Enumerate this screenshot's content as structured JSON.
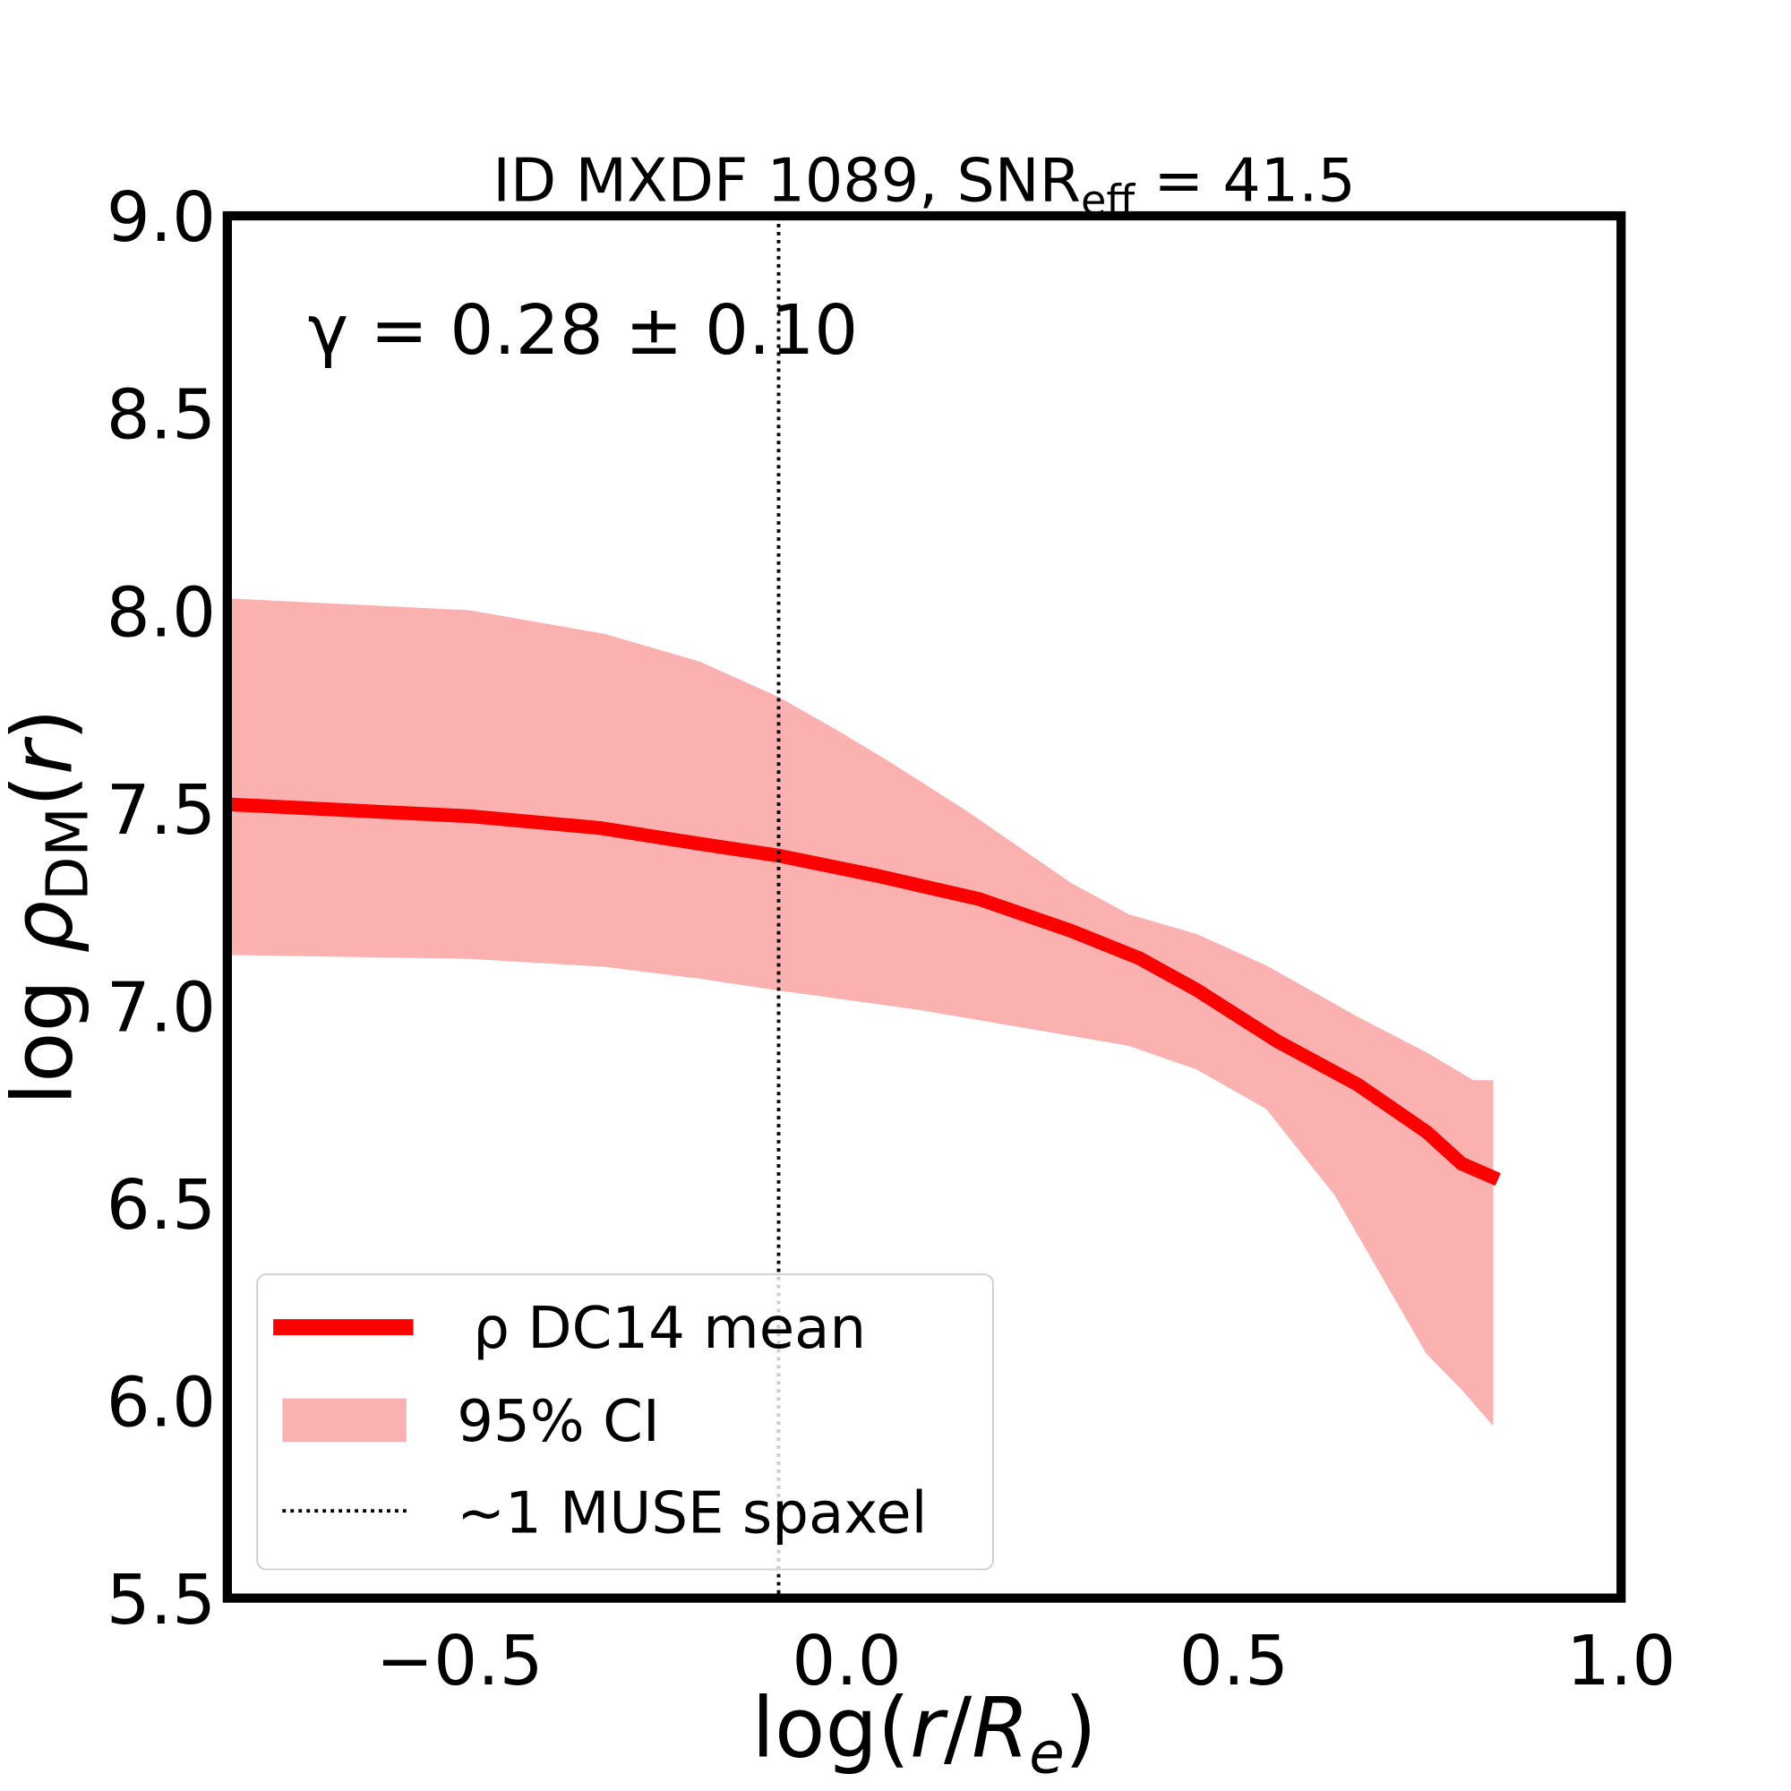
{
  "chart_data": {
    "type": "line",
    "title": "ID MXDF 1089, SNR",
    "title_sub": "eff",
    "title_suffix": " = 41.5",
    "xlabel": "log(r/R_e)",
    "ylabel": "log ρ_DM(r)",
    "xlim": [
      -0.8,
      1.0
    ],
    "ylim": [
      5.5,
      9.0
    ],
    "xticks": [
      "−0.5",
      "0.0",
      "0.5",
      "1.0"
    ],
    "xtick_values": [
      -0.5,
      0.0,
      0.5,
      1.0
    ],
    "yticks": [
      "5.5",
      "6.0",
      "6.5",
      "7.0",
      "7.5",
      "8.0",
      "8.5",
      "9.0"
    ],
    "ytick_values": [
      5.5,
      6.0,
      6.5,
      7.0,
      7.5,
      8.0,
      8.5,
      9.0
    ],
    "grid": false,
    "annotation": "γ = 0.28 ± 0.10",
    "legend_position": "lower-left",
    "series": [
      {
        "name": "ρ DC14 mean",
        "color": "#ff0000",
        "x": [
          -0.8,
          -0.488,
          -0.319,
          -0.19,
          -0.088,
          0.037,
          0.171,
          0.289,
          0.378,
          0.452,
          0.556,
          0.66,
          0.749,
          0.794,
          0.841
        ],
        "y": [
          7.51,
          7.48,
          7.45,
          7.41,
          7.38,
          7.33,
          7.27,
          7.19,
          7.12,
          7.04,
          6.91,
          6.8,
          6.68,
          6.6,
          6.56
        ]
      }
    ],
    "band": {
      "name": "95% CI",
      "color": "#fcb1b1",
      "upper": {
        "x": [
          -0.8,
          -0.488,
          -0.313,
          -0.19,
          -0.088,
          -0.016,
          0.052,
          0.156,
          0.289,
          0.364,
          0.452,
          0.542,
          0.66,
          0.749,
          0.809,
          0.834
        ],
        "y": [
          8.03,
          8.0,
          7.94,
          7.87,
          7.78,
          7.7,
          7.62,
          7.49,
          7.31,
          7.23,
          7.18,
          7.1,
          6.97,
          6.88,
          6.81,
          6.81
        ]
      },
      "lower": {
        "x": [
          -0.8,
          -0.488,
          -0.313,
          -0.19,
          -0.088,
          0.096,
          0.245,
          0.364,
          0.452,
          0.542,
          0.631,
          0.69,
          0.749,
          0.794,
          0.834
        ],
        "y": [
          7.13,
          7.12,
          7.1,
          7.07,
          7.04,
          6.99,
          6.94,
          6.9,
          6.84,
          6.74,
          6.52,
          6.32,
          6.12,
          6.03,
          5.94
        ]
      }
    },
    "vline": {
      "name": "~1 MUSE spaxel",
      "x": -0.088
    }
  }
}
